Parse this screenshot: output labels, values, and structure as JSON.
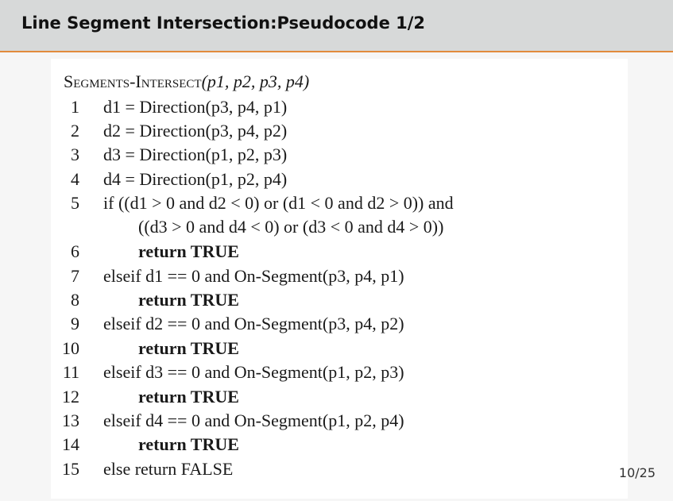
{
  "header": {
    "title": "Line Segment Intersection:Pseudocode 1/2"
  },
  "algorithm": {
    "name": "Segments-Intersect",
    "signature_args": "(p1, p2, p3, p4)",
    "lines": [
      {
        "num": "1",
        "text": "d1 = Direction(p3, p4, p1)"
      },
      {
        "num": "2",
        "text": "d2 = Direction(p3, p4, p2)"
      },
      {
        "num": "3",
        "text": "d3 = Direction(p1, p2, p3)"
      },
      {
        "num": "4",
        "text": "d4 = Direction(p1, p2, p4)"
      },
      {
        "num": "5",
        "text": "if ((d1 > 0 and d2 < 0) or (d1 < 0 and d2 > 0)) and"
      },
      {
        "num": "",
        "text": "((d3 > 0 and d4 < 0) or (d3 < 0 and d4 > 0))"
      },
      {
        "num": "6",
        "text": "return TRUE"
      },
      {
        "num": "7",
        "text": "elseif d1 == 0 and On-Segment(p3, p4, p1)"
      },
      {
        "num": "8",
        "text": "return TRUE"
      },
      {
        "num": "9",
        "text": "elseif d2 == 0 and On-Segment(p3, p4, p2)"
      },
      {
        "num": "10",
        "text": "return TRUE"
      },
      {
        "num": "11",
        "text": "elseif d3 == 0 and On-Segment(p1, p2, p3)"
      },
      {
        "num": "12",
        "text": "return TRUE"
      },
      {
        "num": "13",
        "text": "elseif d4 == 0 and On-Segment(p1, p2, p4)"
      },
      {
        "num": "14",
        "text": "return TRUE"
      },
      {
        "num": "15",
        "text": "else return FALSE"
      }
    ]
  },
  "footer": {
    "page": "10/25"
  },
  "colors": {
    "header_bg": "#d7d9d9",
    "accent": "#e28b3c",
    "page_bg": "#f6f6f6",
    "code_bg": "#ffffff"
  }
}
